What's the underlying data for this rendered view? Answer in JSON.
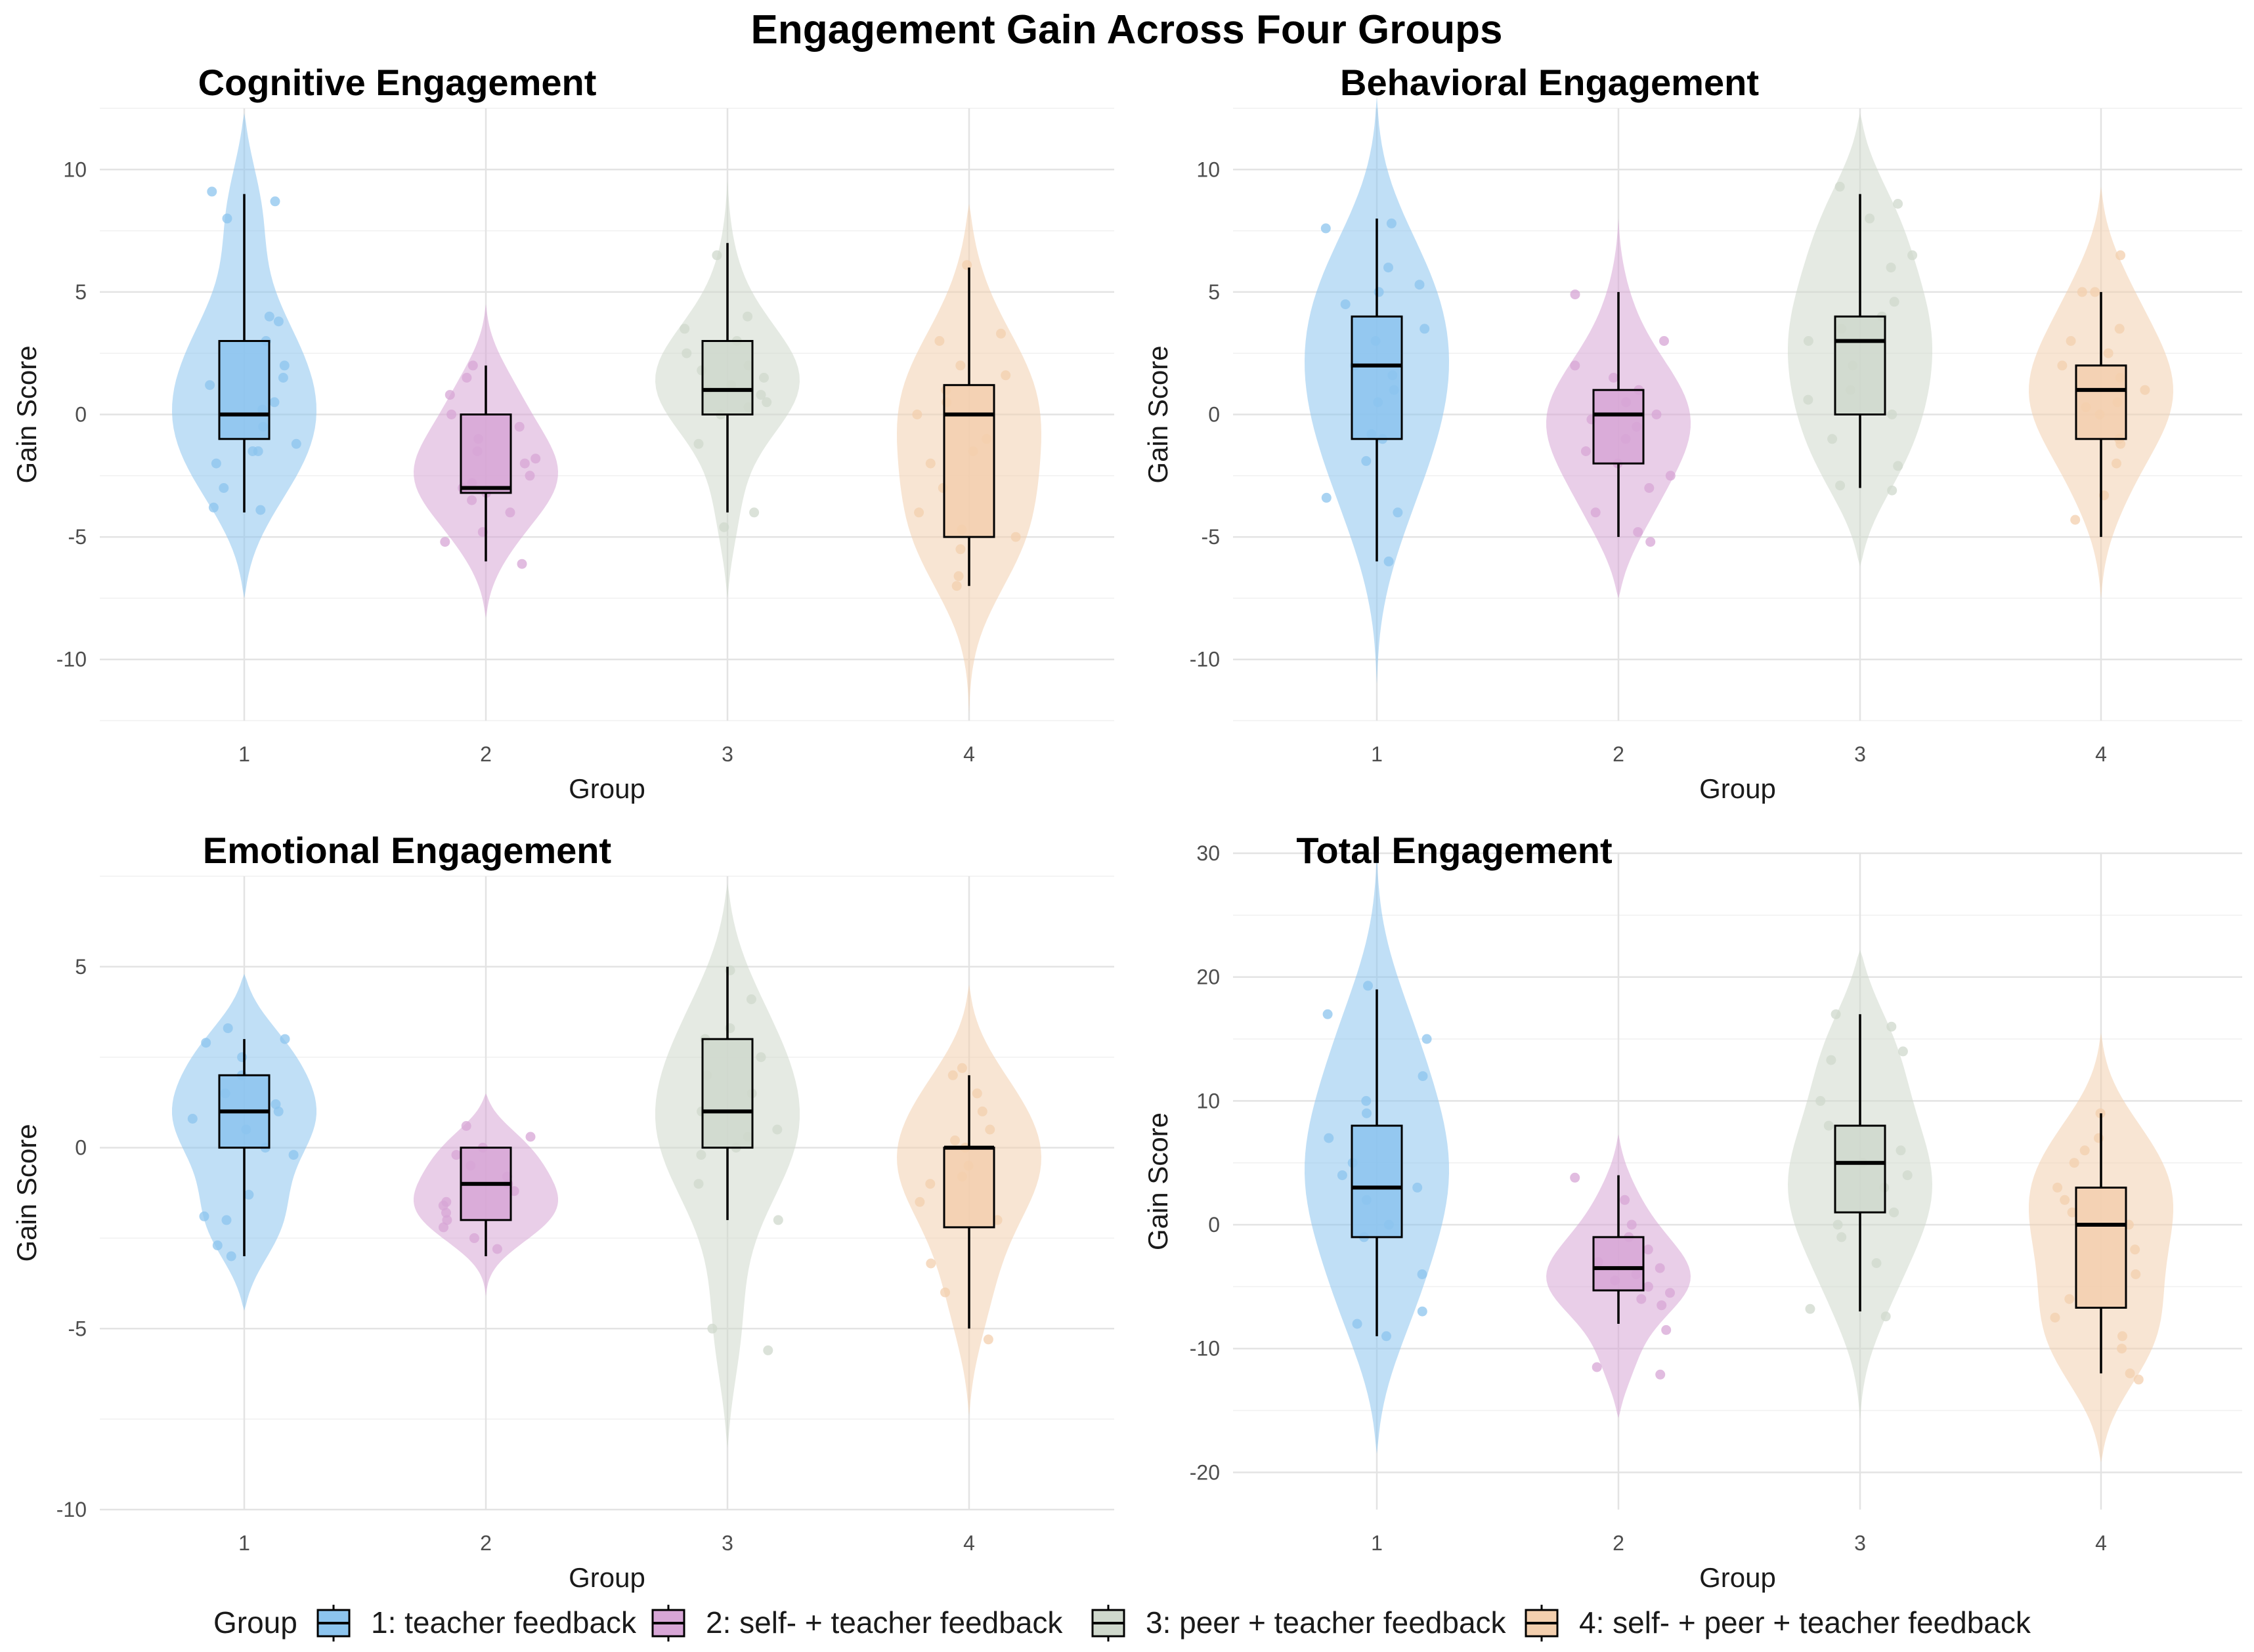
{
  "title": "Engagement Gain Across Four Groups",
  "legend": {
    "title": "Group",
    "entries": [
      "1: teacher feedback",
      "2: self- + teacher feedback",
      "3: peer + teacher feedback",
      "4: self- + peer + teacher feedback"
    ]
  },
  "colors": {
    "group1": "#8CC4EE",
    "group2": "#D7A6D6",
    "group3": "#CFD8CC",
    "group4": "#F3CFAE"
  },
  "chart_data": [
    {
      "type": "violin",
      "title": "Cognitive Engagement",
      "xlabel": "Group",
      "ylabel": "Gain Score",
      "ylim": [
        -12.5,
        12.5
      ],
      "yticks": [
        -10,
        -5,
        0,
        5,
        10
      ],
      "categories": [
        "1",
        "2",
        "3",
        "4"
      ],
      "boxes": [
        {
          "whisker_low": -4,
          "q1": -1,
          "median": 0,
          "q3": 3,
          "whisker_high": 9
        },
        {
          "whisker_low": -6,
          "q1": -3.2,
          "median": -3,
          "q3": 0,
          "whisker_high": 2
        },
        {
          "whisker_low": -4,
          "q1": 0,
          "median": 1,
          "q3": 3,
          "whisker_high": 7
        },
        {
          "whisker_low": -7,
          "q1": -5,
          "median": 0,
          "q3": 1.2,
          "whisker_high": 6
        }
      ],
      "violin_range": [
        [
          -7.5,
          12.3
        ],
        [
          -8.3,
          4.5
        ],
        [
          -7.5,
          9.6
        ],
        [
          -12.2,
          8.6
        ]
      ],
      "points": [
        [
          -3.9,
          -3,
          -1.5,
          -1.2,
          -0.5,
          0.2,
          1.2,
          2,
          3,
          3.8,
          4,
          8,
          8.7,
          9.1,
          -1.5,
          -2,
          -3.8,
          0.5,
          1.5
        ],
        [
          -6.1,
          -5.2,
          -4.8,
          -4,
          -3.5,
          -3,
          -2.8,
          -2.5,
          -2,
          -1.5,
          -1,
          -0.5,
          0,
          0.8,
          1.5,
          2,
          -3.2,
          -1.8
        ],
        [
          -4.6,
          -4,
          -1.2,
          0,
          0.5,
          0.8,
          1,
          1.2,
          1.5,
          2,
          2.5,
          3,
          3.5,
          4,
          6.5,
          0.3,
          1.8
        ],
        [
          -7,
          -6.6,
          -5.5,
          -5,
          -4.7,
          -4,
          -3,
          -2,
          -1,
          0,
          0.5,
          1,
          2,
          3,
          3.3,
          6.1,
          -1.5,
          1.6
        ]
      ]
    },
    {
      "type": "violin",
      "title": "Behavioral Engagement",
      "xlabel": "Group",
      "ylabel": "Gain Score",
      "ylim": [
        -12.5,
        12.5
      ],
      "yticks": [
        -10,
        -5,
        0,
        5,
        10
      ],
      "categories": [
        "1",
        "2",
        "3",
        "4"
      ],
      "boxes": [
        {
          "whisker_low": -6,
          "q1": -1,
          "median": 2,
          "q3": 4,
          "whisker_high": 8
        },
        {
          "whisker_low": -5,
          "q1": -2,
          "median": 0,
          "q3": 1,
          "whisker_high": 5
        },
        {
          "whisker_low": -3,
          "q1": 0,
          "median": 3,
          "q3": 4,
          "whisker_high": 9
        },
        {
          "whisker_low": -5,
          "q1": -1,
          "median": 1,
          "q3": 2,
          "whisker_high": 5
        }
      ],
      "violin_range": [
        [
          -11,
          13
        ],
        [
          -7.5,
          8
        ],
        [
          -6.2,
          12.3
        ],
        [
          -7.5,
          9.3
        ]
      ],
      "points": [
        [
          -6,
          -4,
          -3.4,
          -1,
          -0.8,
          0.5,
          1,
          2,
          3,
          3.5,
          4.5,
          5,
          5.3,
          6,
          7.6,
          7.8,
          1.6,
          -1.9
        ],
        [
          -5.2,
          -4.8,
          -4,
          -3,
          -2.5,
          -2,
          -1.5,
          -1,
          -0.5,
          0,
          0.5,
          1,
          2,
          3,
          4.9,
          -0.2,
          1.5
        ],
        [
          -3.1,
          -2.9,
          -2.1,
          -1,
          0,
          1,
          2,
          3,
          3.5,
          4,
          4.6,
          6,
          6.5,
          8,
          8.6,
          9.3,
          0.6
        ],
        [
          -4.3,
          -3.3,
          -2,
          -1.2,
          -1,
          0,
          0.5,
          1,
          1.5,
          2,
          2.5,
          3,
          3.5,
          5,
          5,
          6.5,
          0.3
        ]
      ]
    },
    {
      "type": "violin",
      "title": "Emotional Engagement",
      "xlabel": "Group",
      "ylabel": "Gain Score",
      "ylim": [
        -10,
        7.5
      ],
      "yticks": [
        -10,
        -5,
        0,
        5
      ],
      "categories": [
        "1",
        "2",
        "3",
        "4"
      ],
      "boxes": [
        {
          "whisker_low": -3,
          "q1": 0,
          "median": 1,
          "q3": 2,
          "whisker_high": 3
        },
        {
          "whisker_low": -3,
          "q1": -2,
          "median": -1,
          "q3": 0,
          "whisker_high": 0
        },
        {
          "whisker_low": -2,
          "q1": 0,
          "median": 1,
          "q3": 3,
          "whisker_high": 5
        },
        {
          "whisker_low": -5,
          "q1": -2.2,
          "median": 0,
          "q3": 0,
          "whisker_high": 2
        }
      ],
      "violin_range": [
        [
          -4.5,
          4.8
        ],
        [
          -4.1,
          1.5
        ],
        [
          -8.3,
          7.3
        ],
        [
          -7.4,
          4.5
        ]
      ],
      "points": [
        [
          -3,
          -2.7,
          -2,
          -1.9,
          -1.3,
          -0.2,
          0,
          0.5,
          1,
          1.2,
          1.5,
          2,
          2.5,
          2.9,
          3,
          3.3,
          0.8
        ],
        [
          -2.8,
          -2.5,
          -2.2,
          -2,
          -1.8,
          -1.5,
          -1.2,
          -1,
          -0.8,
          -0.5,
          -0.2,
          0,
          0.3,
          0.6,
          -1.6
        ],
        [
          -5.6,
          -5,
          -2,
          -1,
          -0.2,
          0,
          0.5,
          1,
          1.5,
          2,
          2.5,
          3,
          3.3,
          4.1,
          4.9,
          0.3
        ],
        [
          -5.3,
          -4,
          -3.2,
          -2,
          -1.5,
          -1,
          -0.5,
          0,
          0.2,
          0.5,
          1,
          1.5,
          2,
          2.2,
          -0.8
        ]
      ]
    },
    {
      "type": "violin",
      "title": "Total Engagement",
      "xlabel": "Group",
      "ylabel": "Gain Score",
      "ylim": [
        -23,
        30
      ],
      "yticks": [
        -20,
        -10,
        0,
        10,
        20,
        30
      ],
      "categories": [
        "1",
        "2",
        "3",
        "4"
      ],
      "boxes": [
        {
          "whisker_low": -9,
          "q1": -1,
          "median": 3,
          "q3": 8,
          "whisker_high": 19
        },
        {
          "whisker_low": -8,
          "q1": -5.3,
          "median": -3.5,
          "q3": -1,
          "whisker_high": 4
        },
        {
          "whisker_low": -7,
          "q1": 1,
          "median": 5,
          "q3": 8,
          "whisker_high": 17
        },
        {
          "whisker_low": -12,
          "q1": -6.7,
          "median": 0,
          "q3": 3,
          "whisker_high": 9
        }
      ],
      "violin_range": [
        [
          -18.5,
          30
        ],
        [
          -15.6,
          7.3
        ],
        [
          -15.7,
          22.2
        ],
        [
          -19.2,
          15.5
        ]
      ],
      "points": [
        [
          -9,
          -8,
          -7,
          -4,
          0,
          2,
          3,
          5,
          7,
          9,
          10,
          12,
          15,
          17,
          19.3,
          -1,
          4
        ],
        [
          -12.1,
          -11.5,
          -8.5,
          -6,
          -5.5,
          -5,
          -4.5,
          -4,
          -3.5,
          -3,
          -2,
          -1,
          0,
          2,
          3.8,
          -6.5
        ],
        [
          -7.4,
          -6.8,
          -3.1,
          0,
          1,
          3,
          4,
          5,
          6,
          8,
          10,
          13.3,
          14,
          16,
          17,
          -1
        ],
        [
          -12.5,
          -12,
          -10,
          -9,
          -6,
          -4,
          -2,
          0,
          1,
          2,
          3,
          5,
          6,
          7,
          9,
          -7.5
        ]
      ]
    }
  ]
}
